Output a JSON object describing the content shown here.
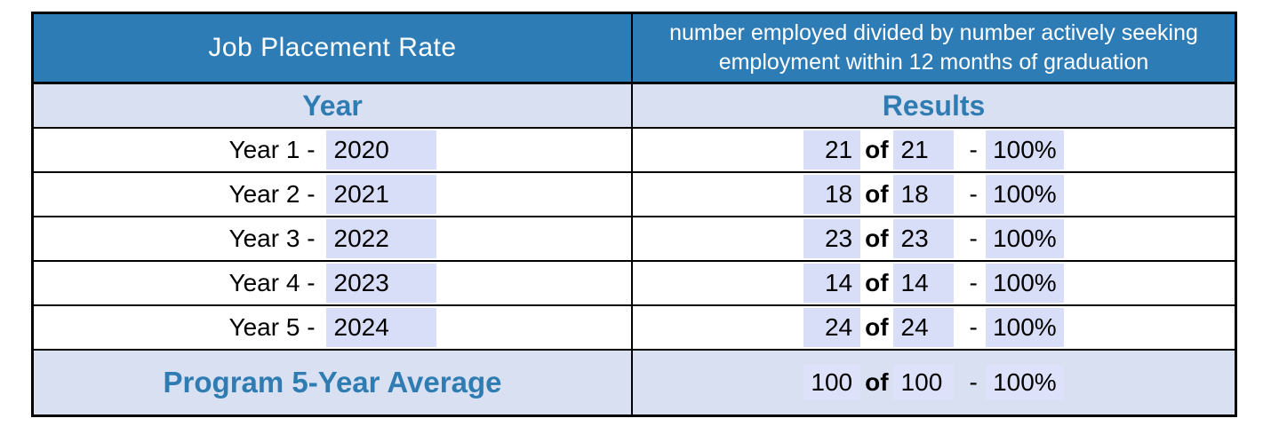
{
  "table": {
    "title": "Job Placement Rate",
    "definition": "number employed divided by number actively seeking employment within 12 months of graduation",
    "columns": {
      "year": "Year",
      "results": "Results"
    },
    "labels": {
      "of": "of",
      "dash": "-"
    },
    "rows": [
      {
        "label": "Year 1 -",
        "year": "2020",
        "employed": "21",
        "seeking": "21",
        "rate": "100%"
      },
      {
        "label": "Year 2 -",
        "year": "2021",
        "employed": "18",
        "seeking": "18",
        "rate": "100%"
      },
      {
        "label": "Year 3 -",
        "year": "2022",
        "employed": "23",
        "seeking": "23",
        "rate": "100%"
      },
      {
        "label": "Year 4 -",
        "year": "2023",
        "employed": "14",
        "seeking": "14",
        "rate": "100%"
      },
      {
        "label": "Year 5 -",
        "year": "2024",
        "employed": "24",
        "seeking": "24",
        "rate": "100%"
      }
    ],
    "footer": {
      "label": "Program 5-Year Average",
      "employed": "100",
      "seeking": "100",
      "rate": "100%"
    }
  },
  "colors": {
    "header_bg": "#2E7CB5",
    "accent_text": "#2F7CB2",
    "band_bg": "#D9E0F1",
    "field_bg": "#D8DEF8",
    "border": "#000000"
  }
}
